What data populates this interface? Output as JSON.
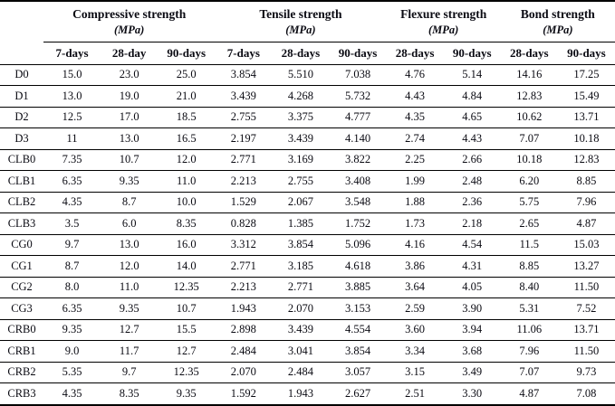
{
  "table": {
    "groups": [
      {
        "label": "Compressive strength",
        "unit": "(MPa)",
        "subcols": [
          "7-days",
          "28-day",
          "90-days"
        ]
      },
      {
        "label": "Tensile strength",
        "unit": "(MPa)",
        "subcols": [
          "7-days",
          "28-days",
          "90-days"
        ]
      },
      {
        "label": "Flexure strength",
        "unit": "(MPa)",
        "subcols": [
          "28-days",
          "90-days"
        ]
      },
      {
        "label": "Bond strength",
        "unit": "(MPa)",
        "subcols": [
          "28-days",
          "90-days"
        ]
      }
    ],
    "rows": [
      {
        "id": "D0",
        "values": [
          "15.0",
          "23.0",
          "25.0",
          "3.854",
          "5.510",
          "7.038",
          "4.76",
          "5.14",
          "14.16",
          "17.25"
        ]
      },
      {
        "id": "D1",
        "values": [
          "13.0",
          "19.0",
          "21.0",
          "3.439",
          "4.268",
          "5.732",
          "4.43",
          "4.84",
          "12.83",
          "15.49"
        ]
      },
      {
        "id": "D2",
        "values": [
          "12.5",
          "17.0",
          "18.5",
          "2.755",
          "3.375",
          "4.777",
          "4.35",
          "4.65",
          "10.62",
          "13.71"
        ]
      },
      {
        "id": "D3",
        "values": [
          "11",
          "13.0",
          "16.5",
          "2.197",
          "3.439",
          "4.140",
          "2.74",
          "4.43",
          "7.07",
          "10.18"
        ]
      },
      {
        "id": "CLB0",
        "values": [
          "7.35",
          "10.7",
          "12.0",
          "2.771",
          "3.169",
          "3.822",
          "2.25",
          "2.66",
          "10.18",
          "12.83"
        ]
      },
      {
        "id": "CLB1",
        "values": [
          "6.35",
          "9.35",
          "11.0",
          "2.213",
          "2.755",
          "3.408",
          "1.99",
          "2.48",
          "6.20",
          "8.85"
        ]
      },
      {
        "id": "CLB2",
        "values": [
          "4.35",
          "8.7",
          "10.0",
          "1.529",
          "2.067",
          "3.548",
          "1.88",
          "2.36",
          "5.75",
          "7.96"
        ]
      },
      {
        "id": "CLB3",
        "values": [
          "3.5",
          "6.0",
          "8.35",
          "0.828",
          "1.385",
          "1.752",
          "1.73",
          "2.18",
          "2.65",
          "4.87"
        ]
      },
      {
        "id": "CG0",
        "values": [
          "9.7",
          "13.0",
          "16.0",
          "3.312",
          "3.854",
          "5.096",
          "4.16",
          "4.54",
          "11.5",
          "15.03"
        ]
      },
      {
        "id": "CG1",
        "values": [
          "8.7",
          "12.0",
          "14.0",
          "2.771",
          "3.185",
          "4.618",
          "3.86",
          "4.31",
          "8.85",
          "13.27"
        ]
      },
      {
        "id": "CG2",
        "values": [
          "8.0",
          "11.0",
          "12.35",
          "2.213",
          "2.771",
          "3.885",
          "3.64",
          "4.05",
          "8.40",
          "11.50"
        ]
      },
      {
        "id": "CG3",
        "values": [
          "6.35",
          "9.35",
          "10.7",
          "1.943",
          "2.070",
          "3.153",
          "2.59",
          "3.90",
          "5.31",
          "7.52"
        ]
      },
      {
        "id": "CRB0",
        "values": [
          "9.35",
          "12.7",
          "15.5",
          "2.898",
          "3.439",
          "4.554",
          "3.60",
          "3.94",
          "11.06",
          "13.71"
        ]
      },
      {
        "id": "CRB1",
        "values": [
          "9.0",
          "11.7",
          "12.7",
          "2.484",
          "3.041",
          "3.854",
          "3.34",
          "3.68",
          "7.96",
          "11.50"
        ]
      },
      {
        "id": "CRB2",
        "values": [
          "5.35",
          "9.7",
          "12.35",
          "2.070",
          "2.484",
          "3.057",
          "3.15",
          "3.49",
          "7.07",
          "9.73"
        ]
      },
      {
        "id": "CRB3",
        "values": [
          "4.35",
          "8.35",
          "9.35",
          "1.592",
          "1.943",
          "2.627",
          "2.51",
          "3.30",
          "4.87",
          "7.08"
        ]
      }
    ]
  },
  "colors": {
    "text": "#0a0a12",
    "border": "#000000",
    "background": "#ffffff"
  }
}
